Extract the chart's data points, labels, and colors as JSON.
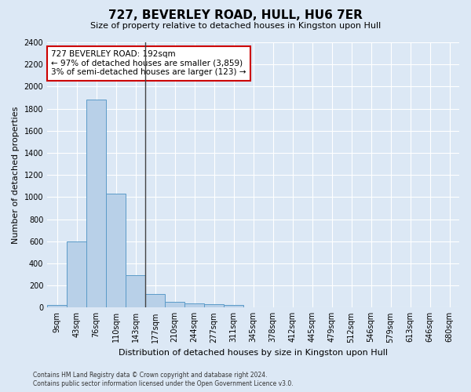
{
  "title": "727, BEVERLEY ROAD, HULL, HU6 7ER",
  "subtitle": "Size of property relative to detached houses in Kingston upon Hull",
  "xlabel": "Distribution of detached houses by size in Kingston upon Hull",
  "ylabel": "Number of detached properties",
  "footer_line1": "Contains HM Land Registry data © Crown copyright and database right 2024.",
  "footer_line2": "Contains public sector information licensed under the Open Government Licence v3.0.",
  "bar_labels": [
    "9sqm",
    "43sqm",
    "76sqm",
    "110sqm",
    "143sqm",
    "177sqm",
    "210sqm",
    "244sqm",
    "277sqm",
    "311sqm",
    "345sqm",
    "378sqm",
    "412sqm",
    "445sqm",
    "479sqm",
    "512sqm",
    "546sqm",
    "579sqm",
    "613sqm",
    "646sqm",
    "680sqm"
  ],
  "bar_values": [
    20,
    600,
    1880,
    1030,
    290,
    120,
    50,
    40,
    30,
    20,
    0,
    0,
    0,
    0,
    0,
    0,
    0,
    0,
    0,
    0,
    0
  ],
  "bar_color": "#b8d0e8",
  "bar_edge_color": "#5b9bc8",
  "highlight_line_value": 4.5,
  "ylim": [
    0,
    2400
  ],
  "yticks": [
    0,
    200,
    400,
    600,
    800,
    1000,
    1200,
    1400,
    1600,
    1800,
    2000,
    2200,
    2400
  ],
  "annotation_text": "727 BEVERLEY ROAD: 192sqm\n← 97% of detached houses are smaller (3,859)\n3% of semi-detached houses are larger (123) →",
  "annotation_box_facecolor": "#ffffff",
  "annotation_box_edgecolor": "#cc0000",
  "vline_color": "#444444",
  "bg_color": "#dce8f5",
  "plot_bg_color": "#dce8f5",
  "grid_color": "#ffffff",
  "title_fontsize": 11,
  "subtitle_fontsize": 8,
  "ylabel_fontsize": 8,
  "xlabel_fontsize": 8,
  "tick_fontsize": 7,
  "annot_fontsize": 7.5,
  "footer_fontsize": 5.5
}
